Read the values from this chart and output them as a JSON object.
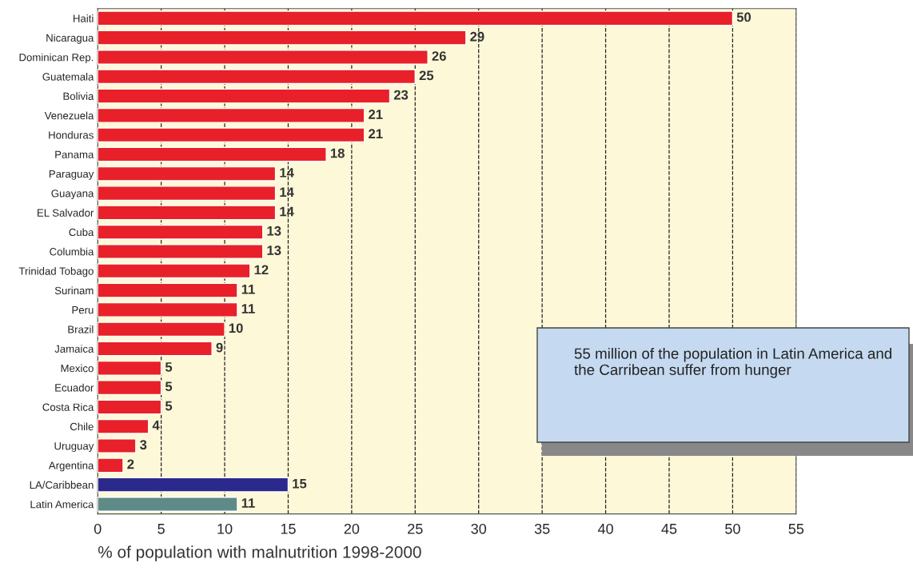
{
  "chart_data": {
    "type": "bar",
    "orientation": "horizontal",
    "xlabel": "% of population with malnutrition 1998-2000",
    "categories": [
      "Haiti",
      "Nicaragua",
      "Dominican Rep.",
      "Guatemala",
      "Bolivia",
      "Venezuela",
      "Honduras",
      "Panama",
      "Paraguay",
      "Guayana",
      "EL Salvador",
      "Cuba",
      "Columbia",
      "Trinidad Tobago",
      "Surinam",
      "Peru",
      "Brazil",
      "Jamaica",
      "Mexico",
      "Ecuador",
      "Costa Rica",
      "Chile",
      "Uruguay",
      "Argentina",
      "LA/Caribbean",
      "Latin America"
    ],
    "values": [
      50,
      29,
      26,
      25,
      23,
      21,
      21,
      18,
      14,
      14,
      14,
      13,
      13,
      12,
      11,
      11,
      10,
      9,
      5,
      5,
      5,
      4,
      3,
      2,
      15,
      11
    ],
    "colors": [
      "#e8202a",
      "#e8202a",
      "#e8202a",
      "#e8202a",
      "#e8202a",
      "#e8202a",
      "#e8202a",
      "#e8202a",
      "#e8202a",
      "#e8202a",
      "#e8202a",
      "#e8202a",
      "#e8202a",
      "#e8202a",
      "#e8202a",
      "#e8202a",
      "#e8202a",
      "#e8202a",
      "#e8202a",
      "#e8202a",
      "#e8202a",
      "#e8202a",
      "#e8202a",
      "#e8202a",
      "#2b2a8c",
      "#5f8a87"
    ],
    "xlim": [
      0,
      55
    ],
    "xticks": [
      0,
      5,
      10,
      15,
      20,
      25,
      30,
      35,
      40,
      45,
      50,
      55
    ],
    "grid": "x",
    "data_labels": true,
    "annotations": [
      "55 million of the population in Latin America and the Carribean suffer from hunger"
    ]
  }
}
